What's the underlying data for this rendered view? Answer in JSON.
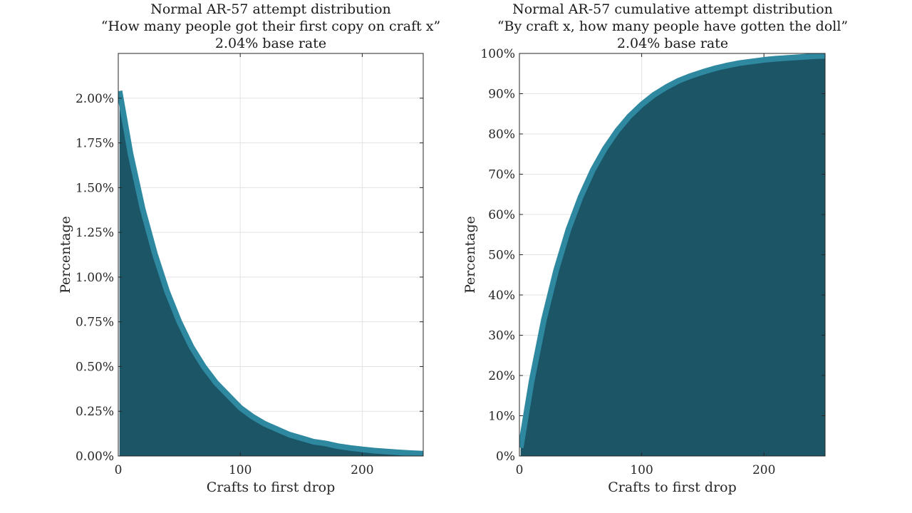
{
  "chart_data": [
    {
      "type": "area",
      "title_lines": [
        "Normal AR-57 attempt distribution",
        "“How many people got their first copy on craft x”",
        "2.04% base rate"
      ],
      "xlabel": "Crafts to first drop",
      "ylabel": "Percentage",
      "xlim": [
        0,
        250
      ],
      "ylim": [
        0,
        2.25
      ],
      "x_ticks": [
        0,
        100,
        200
      ],
      "y_ticks": [
        0,
        0.25,
        0.5,
        0.75,
        1.0,
        1.25,
        1.5,
        1.75,
        2.0
      ],
      "y_tick_labels": [
        "0.00%",
        "0.25%",
        "0.50%",
        "0.75%",
        "1.00%",
        "1.25%",
        "1.50%",
        "1.75%",
        "2.00%"
      ],
      "grid": true,
      "series": [
        {
          "x": [
            1,
            10,
            20,
            30,
            40,
            50,
            60,
            70,
            80,
            90,
            100,
            110,
            120,
            130,
            140,
            150,
            160,
            170,
            180,
            190,
            200,
            210,
            220,
            230,
            240,
            250
          ],
          "values": [
            2.04,
            1.69,
            1.38,
            1.13,
            0.92,
            0.75,
            0.61,
            0.5,
            0.41,
            0.34,
            0.27,
            0.22,
            0.18,
            0.15,
            0.12,
            0.1,
            0.08,
            0.07,
            0.055,
            0.045,
            0.037,
            0.03,
            0.025,
            0.02,
            0.016,
            0.013
          ]
        }
      ]
    },
    {
      "type": "area",
      "title_lines": [
        "Normal AR-57 cumulative attempt distribution",
        "“By craft x, how many people have gotten the doll”",
        "2.04% base rate"
      ],
      "xlabel": "Crafts to first drop",
      "ylabel": "Percentage",
      "xlim": [
        0,
        250
      ],
      "ylim": [
        0,
        100
      ],
      "x_ticks": [
        0,
        100,
        200
      ],
      "y_ticks": [
        0,
        10,
        20,
        30,
        40,
        50,
        60,
        70,
        80,
        90,
        100
      ],
      "y_tick_labels": [
        "0%",
        "10%",
        "20%",
        "30%",
        "40%",
        "50%",
        "60%",
        "70%",
        "80%",
        "90%",
        "100%"
      ],
      "grid": true,
      "series": [
        {
          "x": [
            1,
            10,
            20,
            30,
            40,
            50,
            60,
            70,
            80,
            90,
            100,
            110,
            120,
            130,
            140,
            150,
            160,
            170,
            180,
            190,
            200,
            210,
            220,
            230,
            240,
            250
          ],
          "values": [
            2.04,
            18.6,
            33.8,
            46.1,
            56.2,
            64.3,
            71.0,
            76.4,
            80.8,
            84.4,
            87.3,
            89.7,
            91.6,
            93.2,
            94.4,
            95.4,
            96.3,
            97.0,
            97.6,
            98.0,
            98.4,
            98.7,
            98.9,
            99.1,
            99.3,
            99.4
          ]
        }
      ]
    }
  ],
  "colors": {
    "fill": "#1b5566",
    "line": "#2d88a0",
    "grid": "#e3e3e3",
    "axis": "#262626"
  }
}
